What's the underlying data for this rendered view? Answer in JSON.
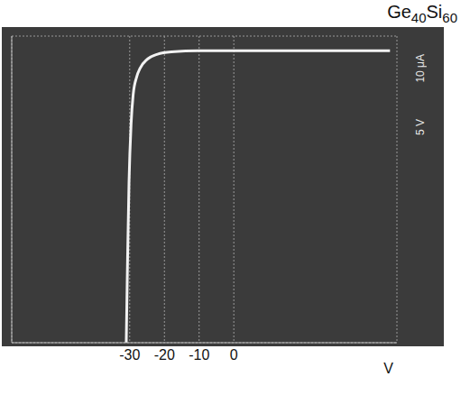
{
  "chart_data": {
    "type": "line",
    "title": "Ge40Si60",
    "x_label": "V",
    "annotations": [
      "10 μA",
      "5 V"
    ],
    "x": [
      -31,
      -30.6,
      -30.2,
      -29.6,
      -29,
      -28,
      -27,
      -25,
      -22,
      -18,
      -10,
      0,
      45
    ],
    "values": [
      -100,
      -70,
      -45,
      -25,
      -15,
      -9,
      -6,
      -3,
      -1.2,
      -0.4,
      0,
      0,
      0
    ],
    "color": "#f2f2f2",
    "xlim": [
      -64,
      47
    ],
    "xticks": [
      -30,
      -20,
      -10,
      0
    ],
    "ylim": [
      -100,
      5
    ],
    "yticks": [
      -100,
      -80,
      -60,
      -40,
      -20,
      0
    ],
    "grid": true,
    "tick_labels": "x"
  }
}
